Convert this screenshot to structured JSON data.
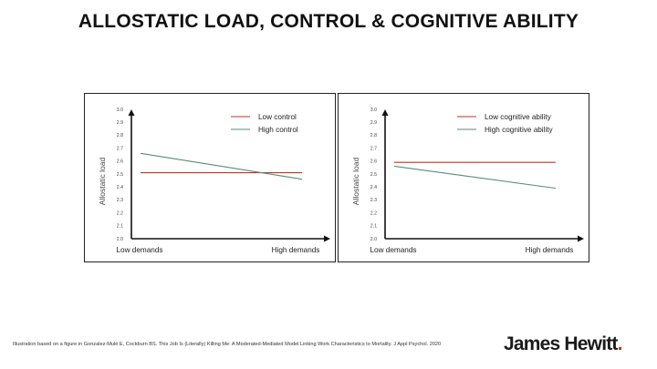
{
  "title": "ALLOSTATIC LOAD, CONTROL & COGNITIVE ABILITY",
  "footnote": "Illustration based on a figure in Gonzalez-Mulé E, Cockburn BS. This Job Is (Literally) Killing Me: A Moderated-Mediated Model Linking Work Characteristics to Mortality. J Appl Psychol. 2020",
  "brand": "James Hewitt",
  "brand_dot": ".",
  "colors": {
    "red": "#b03a2e",
    "green": "#5b8a7a",
    "axis": "#111111"
  },
  "chart_data": [
    {
      "type": "line",
      "title": "",
      "xlabel": "",
      "ylabel": "Allostatic load",
      "categories": [
        "Low demands",
        "High demands"
      ],
      "ylim": [
        2.0,
        3.0
      ],
      "yticks": [
        "2.0",
        "2.1",
        "2.2",
        "2.3",
        "2.4",
        "2.5",
        "2.6",
        "2.7",
        "2.8",
        "2.9",
        "3.0"
      ],
      "legend_position": "top-right",
      "grid": false,
      "series": [
        {
          "name": "Low control",
          "color": "#b03a2e",
          "values": [
            2.51,
            2.51
          ]
        },
        {
          "name": "High control",
          "color": "#5b8a7a",
          "values": [
            2.66,
            2.46
          ]
        }
      ]
    },
    {
      "type": "line",
      "title": "",
      "xlabel": "",
      "ylabel": "Allostatic load",
      "categories": [
        "Low demands",
        "High demands"
      ],
      "ylim": [
        2.0,
        3.0
      ],
      "yticks": [
        "2.0",
        "2.1",
        "2.2",
        "2.3",
        "2.4",
        "2.5",
        "2.6",
        "2.7",
        "2.8",
        "2.9",
        "3.0"
      ],
      "legend_position": "top-right",
      "grid": false,
      "series": [
        {
          "name": "Low cognitive ability",
          "color": "#b03a2e",
          "values": [
            2.59,
            2.59
          ]
        },
        {
          "name": "High cognitive ability",
          "color": "#5b8a7a",
          "values": [
            2.56,
            2.39
          ]
        }
      ]
    }
  ]
}
